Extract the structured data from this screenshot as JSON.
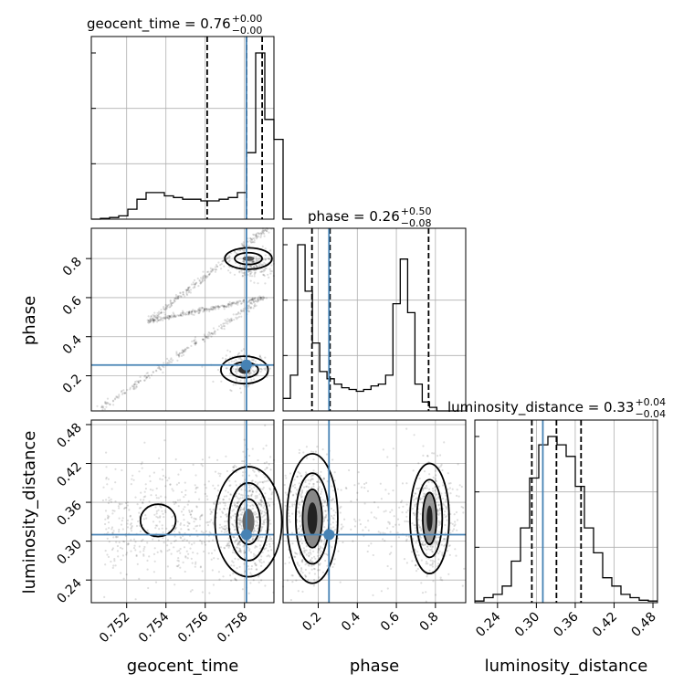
{
  "chart_data": {
    "type": "corner",
    "parameters": [
      "geocent_time",
      "phase",
      "luminosity_distance"
    ],
    "titles": [
      {
        "name": "geocent_time",
        "median": "0.76",
        "plus": "+0.00",
        "minus": "−0.00"
      },
      {
        "name": "phase",
        "median": "0.26",
        "plus": "+0.50",
        "minus": "−0.08"
      },
      {
        "name": "luminosity_distance",
        "median": "0.33",
        "plus": "+0.04",
        "minus": "−0.04"
      }
    ],
    "ranges": {
      "geocent_time": [
        0.7502,
        0.7595
      ],
      "phase": [
        0.02,
        0.955
      ],
      "luminosity_distance": [
        0.205,
        0.487
      ]
    },
    "ticks": {
      "geocent_time": [
        0.752,
        0.754,
        0.756,
        0.758
      ],
      "phase": [
        0.2,
        0.4,
        0.6,
        0.8
      ],
      "luminosity_distance": [
        0.24,
        0.3,
        0.36,
        0.42,
        0.48
      ]
    },
    "tick_labels": {
      "geocent_time": [
        "0.752",
        "0.754",
        "0.756",
        "0.758"
      ],
      "phase": [
        "0.2",
        "0.4",
        "0.6",
        "0.8"
      ],
      "luminosity_distance": [
        "0.24",
        "0.30",
        "0.36",
        "0.42",
        "0.48"
      ]
    },
    "truths": {
      "geocent_time": 0.7581,
      "phase": 0.255,
      "luminosity_distance": 0.31
    },
    "quantiles": {
      "geocent_time": [
        0.7561,
        0.7581,
        0.7589
      ],
      "phase": [
        0.168,
        0.26,
        0.765
      ],
      "luminosity_distance": [
        0.293,
        0.331,
        0.369
      ]
    },
    "hist_1d": {
      "geocent_time": {
        "edges_start": 0.7502,
        "bin_width": 0.000465,
        "counts": [
          0,
          0.5,
          1,
          2,
          6,
          12,
          16,
          16,
          14,
          13,
          12,
          12,
          11,
          11,
          12,
          13,
          16,
          40,
          100,
          60,
          48,
          0
        ]
      },
      "phase": {
        "edges_start": 0.02,
        "bin_width": 0.0375,
        "counts": [
          7,
          20,
          93,
          67,
          38,
          22,
          18,
          15,
          13,
          12,
          11,
          12,
          14,
          15,
          20,
          60,
          85,
          55,
          15,
          5,
          2,
          0,
          0,
          0
        ]
      },
      "luminosity_distance": {
        "edges_start": 0.205,
        "bin_width": 0.0141,
        "counts": [
          1,
          3,
          5,
          10,
          25,
          45,
          75,
          95,
          100,
          95,
          88,
          70,
          45,
          30,
          15,
          10,
          5,
          3,
          1.5,
          1
        ]
      }
    },
    "grid": true
  }
}
